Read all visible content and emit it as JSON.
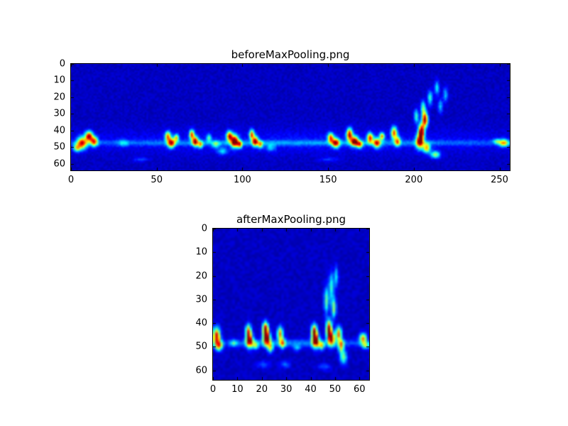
{
  "figure": {
    "background": "#ffffff"
  },
  "colors": {
    "colormap_low": "#000080",
    "colormap_mid": "#00ffff",
    "colormap_high": "#ff0000"
  },
  "chart_data": [
    {
      "type": "heatmap",
      "title": "beforeMaxPooling.png",
      "xlabel": "",
      "ylabel": "",
      "xlim": [
        0,
        256
      ],
      "ylim": [
        64,
        0
      ],
      "xticks": [
        0,
        50,
        100,
        150,
        200,
        250
      ],
      "yticks": [
        0,
        10,
        20,
        30,
        40,
        50,
        60
      ],
      "colormap": "jet",
      "grid": {
        "cols": 256,
        "rows": 64
      },
      "legend": "none",
      "background_value": 0.04,
      "noise_amplitude": 0.05,
      "description": "Spectrogram-like energy map, mostly dark blue with a band of bright activity around rows 38-52; hotspots given as [x, y, sigma_x, sigma_y, amplitude] in data units.",
      "hotspots": [
        [
          128,
          47,
          120,
          1.2,
          0.16
        ],
        [
          128,
          46,
          120,
          5,
          0.07
        ],
        [
          6,
          47,
          2,
          2.5,
          0.75
        ],
        [
          10,
          43,
          1.5,
          2,
          0.85
        ],
        [
          13,
          46,
          1.5,
          2,
          0.7
        ],
        [
          3,
          50,
          1.5,
          1.5,
          0.5
        ],
        [
          30,
          47,
          2,
          1.5,
          0.18
        ],
        [
          56,
          43,
          1.2,
          2,
          0.65
        ],
        [
          58,
          47,
          1.5,
          2,
          0.75
        ],
        [
          61,
          44,
          1,
          1.5,
          0.55
        ],
        [
          70,
          42,
          1,
          2,
          0.7
        ],
        [
          72,
          46,
          1.2,
          2,
          0.8
        ],
        [
          75,
          48,
          1,
          1.5,
          0.5
        ],
        [
          80,
          44,
          1,
          1.5,
          0.35
        ],
        [
          84,
          48,
          1.5,
          1.5,
          0.3
        ],
        [
          88,
          52,
          2,
          1.5,
          0.25
        ],
        [
          92,
          43,
          1.2,
          2,
          0.8
        ],
        [
          95,
          46,
          1.5,
          2.5,
          0.95
        ],
        [
          98,
          48,
          1,
          1.5,
          0.6
        ],
        [
          105,
          42,
          1,
          2,
          0.7
        ],
        [
          107,
          46,
          1.2,
          2,
          0.8
        ],
        [
          110,
          48,
          1,
          1.5,
          0.5
        ],
        [
          116,
          50,
          2,
          1.5,
          0.22
        ],
        [
          151,
          44,
          1.2,
          2,
          0.7
        ],
        [
          154,
          47,
          1.5,
          2,
          0.75
        ],
        [
          162,
          42,
          1.2,
          2.5,
          0.85
        ],
        [
          165,
          46,
          1.5,
          2,
          0.9
        ],
        [
          168,
          48,
          1.2,
          1.5,
          0.6
        ],
        [
          174,
          44,
          1.2,
          2,
          0.75
        ],
        [
          178,
          47,
          1.5,
          2,
          0.7
        ],
        [
          181,
          43,
          1,
          1.5,
          0.6
        ],
        [
          188,
          41,
          1.2,
          2.5,
          0.7
        ],
        [
          190,
          46,
          1.2,
          2,
          0.6
        ],
        [
          213,
          14,
          1,
          3,
          0.3
        ],
        [
          209,
          20,
          1,
          3,
          0.35
        ],
        [
          205,
          26,
          1,
          3,
          0.4
        ],
        [
          201,
          31,
          1,
          3,
          0.35
        ],
        [
          218,
          18,
          1,
          3,
          0.25
        ],
        [
          215,
          25,
          1,
          3,
          0.25
        ],
        [
          206,
          33,
          1.2,
          3,
          0.9
        ],
        [
          204,
          40,
          1.2,
          3,
          0.95
        ],
        [
          203,
          46,
          1.5,
          3,
          0.85
        ],
        [
          207,
          50,
          1.5,
          2,
          0.6
        ],
        [
          212,
          54,
          2,
          1.5,
          0.45
        ],
        [
          252,
          47,
          2,
          1.5,
          0.55
        ],
        [
          248,
          46,
          1.5,
          1,
          0.3
        ],
        [
          40,
          57,
          3,
          1,
          0.12
        ],
        [
          150,
          57,
          4,
          1,
          0.1
        ]
      ]
    },
    {
      "type": "heatmap",
      "title": "afterMaxPooling.png",
      "xlabel": "",
      "ylabel": "",
      "xlim": [
        0,
        64
      ],
      "ylim": [
        64,
        0
      ],
      "xticks": [
        0,
        10,
        20,
        30,
        40,
        50,
        60
      ],
      "yticks": [
        0,
        10,
        20,
        30,
        40,
        50,
        60
      ],
      "colormap": "jet",
      "grid": {
        "cols": 64,
        "rows": 64
      },
      "legend": "none",
      "background_value": 0.04,
      "noise_amplitude": 0.05,
      "description": "Max-pooled spectrogram, dark blue with bright columns of activity around rows 38-52 and faint vertical streaks near column 47; hotspots as [x, y, sigma_x, sigma_y, amplitude].",
      "hotspots": [
        [
          32,
          48,
          30,
          1.2,
          0.18
        ],
        [
          1,
          45,
          1,
          2.5,
          0.85
        ],
        [
          2,
          49,
          1,
          1.5,
          0.6
        ],
        [
          8,
          48,
          1,
          1,
          0.28
        ],
        [
          14,
          43,
          0.8,
          2,
          0.7
        ],
        [
          14.5,
          47,
          1,
          2,
          0.85
        ],
        [
          17,
          49,
          0.8,
          1.2,
          0.4
        ],
        [
          21,
          42,
          0.8,
          2,
          0.9
        ],
        [
          21.5,
          46,
          1,
          2,
          0.95
        ],
        [
          23,
          50,
          0.8,
          1.5,
          0.5
        ],
        [
          27,
          44,
          0.8,
          2,
          0.7
        ],
        [
          28,
          48,
          0.8,
          1.5,
          0.55
        ],
        [
          29,
          57,
          1.5,
          1,
          0.18
        ],
        [
          34,
          50,
          1,
          1,
          0.22
        ],
        [
          41,
          43,
          0.8,
          2,
          0.85
        ],
        [
          41.5,
          47,
          1,
          2,
          0.9
        ],
        [
          44,
          49,
          0.8,
          1.2,
          0.5
        ],
        [
          47,
          42,
          0.8,
          2.5,
          0.9
        ],
        [
          48,
          46,
          1,
          2,
          0.85
        ],
        [
          46,
          30,
          0.7,
          4,
          0.4
        ],
        [
          48,
          24,
          0.7,
          4,
          0.35
        ],
        [
          49,
          33,
          0.7,
          3,
          0.45
        ],
        [
          50,
          20,
          0.6,
          3,
          0.3
        ],
        [
          51,
          44,
          0.8,
          2,
          0.7
        ],
        [
          52,
          49,
          0.8,
          2,
          0.6
        ],
        [
          53,
          54,
          1,
          2,
          0.4
        ],
        [
          61,
          46,
          1,
          1.5,
          0.65
        ],
        [
          62,
          49,
          1,
          1,
          0.4
        ],
        [
          20,
          57,
          2,
          1,
          0.14
        ],
        [
          45,
          58,
          2,
          1,
          0.14
        ]
      ]
    }
  ]
}
